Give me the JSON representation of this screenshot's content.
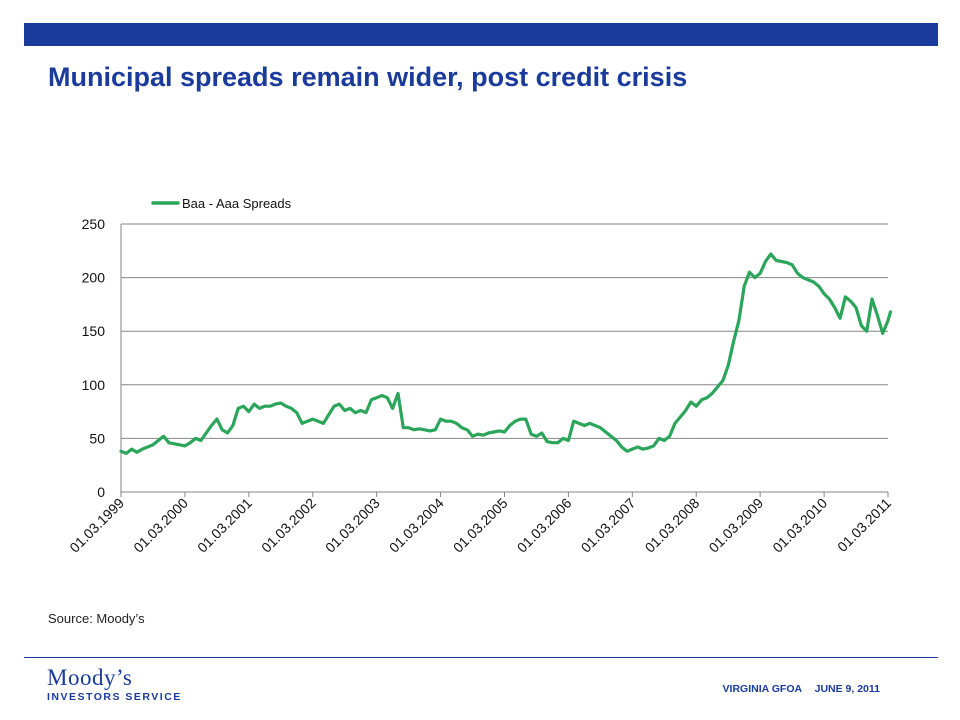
{
  "slide": {
    "title": "Municipal spreads remain wider, post credit crisis",
    "source": "Source: Moody’s",
    "logo_top": "Moody’s",
    "logo_bottom": "INVESTORS SERVICE",
    "footer_org": "VIRGINIA GFOA",
    "footer_date": "JUNE 9, 2011"
  },
  "colors": {
    "brand_blue": "#1a3b9c",
    "series": "#2aa55a",
    "grid": "#868686"
  },
  "chart_data": {
    "type": "line",
    "title": "",
    "xlabel": "",
    "ylabel": "",
    "ylim": [
      0,
      250
    ],
    "yticks": [
      0,
      50,
      100,
      150,
      200,
      250
    ],
    "xlim": [
      "01.03.1999",
      "01.03.2011"
    ],
    "xticks": [
      "01.03.1999",
      "01.03.2000",
      "01.03.2001",
      "01.03.2002",
      "01.03.2003",
      "01.03.2004",
      "01.03.2005",
      "01.03.2006",
      "01.03.2007",
      "01.03.2008",
      "01.03.2009",
      "01.03.2010",
      "01.03.2011"
    ],
    "grid": true,
    "legend": "top-left",
    "series": [
      {
        "name": "Baa - Aaa Spreads",
        "points": [
          [
            "01.03.1999",
            38
          ],
          [
            "01.04.1999",
            36
          ],
          [
            "01.05.1999",
            40
          ],
          [
            "01.06.1999",
            37
          ],
          [
            "01.07.1999",
            40
          ],
          [
            "01.08.1999",
            42
          ],
          [
            "01.09.1999",
            44
          ],
          [
            "01.10.1999",
            48
          ],
          [
            "01.11.1999",
            52
          ],
          [
            "01.12.1999",
            46
          ],
          [
            "01.01.2000",
            45
          ],
          [
            "01.02.2000",
            44
          ],
          [
            "01.03.2000",
            43
          ],
          [
            "01.04.2000",
            46
          ],
          [
            "01.05.2000",
            50
          ],
          [
            "01.06.2000",
            48
          ],
          [
            "01.07.2000",
            55
          ],
          [
            "01.08.2000",
            62
          ],
          [
            "01.09.2000",
            68
          ],
          [
            "01.10.2000",
            58
          ],
          [
            "01.11.2000",
            55
          ],
          [
            "01.12.2000",
            62
          ],
          [
            "01.01.2001",
            78
          ],
          [
            "01.02.2001",
            80
          ],
          [
            "01.03.2001",
            75
          ],
          [
            "01.04.2001",
            82
          ],
          [
            "01.05.2001",
            78
          ],
          [
            "01.06.2001",
            80
          ],
          [
            "01.07.2001",
            80
          ],
          [
            "01.08.2001",
            82
          ],
          [
            "01.09.2001",
            83
          ],
          [
            "01.10.2001",
            80
          ],
          [
            "01.11.2001",
            78
          ],
          [
            "01.12.2001",
            74
          ],
          [
            "01.01.2002",
            64
          ],
          [
            "01.02.2002",
            66
          ],
          [
            "01.03.2002",
            68
          ],
          [
            "01.04.2002",
            66
          ],
          [
            "01.05.2002",
            64
          ],
          [
            "01.06.2002",
            72
          ],
          [
            "01.07.2002",
            80
          ],
          [
            "01.08.2002",
            82
          ],
          [
            "01.09.2002",
            76
          ],
          [
            "01.10.2002",
            78
          ],
          [
            "01.11.2002",
            74
          ],
          [
            "01.12.2002",
            76
          ],
          [
            "01.01.2003",
            74
          ],
          [
            "01.02.2003",
            86
          ],
          [
            "01.03.2003",
            88
          ],
          [
            "01.04.2003",
            90
          ],
          [
            "01.05.2003",
            88
          ],
          [
            "01.06.2003",
            78
          ],
          [
            "01.07.2003",
            92
          ],
          [
            "01.08.2003",
            60
          ],
          [
            "01.09.2003",
            60
          ],
          [
            "01.10.2003",
            58
          ],
          [
            "01.11.2003",
            59
          ],
          [
            "01.12.2003",
            58
          ],
          [
            "01.01.2004",
            57
          ],
          [
            "01.02.2004",
            58
          ],
          [
            "01.03.2004",
            68
          ],
          [
            "01.04.2004",
            66
          ],
          [
            "01.05.2004",
            66
          ],
          [
            "01.06.2004",
            64
          ],
          [
            "01.07.2004",
            60
          ],
          [
            "01.08.2004",
            58
          ],
          [
            "01.09.2004",
            52
          ],
          [
            "01.10.2004",
            54
          ],
          [
            "01.11.2004",
            53
          ],
          [
            "01.12.2004",
            55
          ],
          [
            "01.01.2005",
            56
          ],
          [
            "01.02.2005",
            57
          ],
          [
            "01.03.2005",
            56
          ],
          [
            "01.04.2005",
            62
          ],
          [
            "01.05.2005",
            66
          ],
          [
            "01.06.2005",
            68
          ],
          [
            "01.07.2005",
            68
          ],
          [
            "01.08.2005",
            54
          ],
          [
            "01.09.2005",
            52
          ],
          [
            "01.10.2005",
            55
          ],
          [
            "01.11.2005",
            47
          ],
          [
            "01.12.2005",
            46
          ],
          [
            "01.01.2006",
            46
          ],
          [
            "01.02.2006",
            50
          ],
          [
            "01.03.2006",
            48
          ],
          [
            "01.04.2006",
            66
          ],
          [
            "01.05.2006",
            64
          ],
          [
            "01.06.2006",
            62
          ],
          [
            "01.07.2006",
            64
          ],
          [
            "01.08.2006",
            62
          ],
          [
            "01.09.2006",
            60
          ],
          [
            "01.10.2006",
            56
          ],
          [
            "01.11.2006",
            52
          ],
          [
            "01.12.2006",
            48
          ],
          [
            "01.01.2007",
            42
          ],
          [
            "01.02.2007",
            38
          ],
          [
            "01.03.2007",
            40
          ],
          [
            "01.04.2007",
            42
          ],
          [
            "01.05.2007",
            40
          ],
          [
            "01.06.2007",
            41
          ],
          [
            "01.07.2007",
            43
          ],
          [
            "01.08.2007",
            50
          ],
          [
            "01.09.2007",
            48
          ],
          [
            "01.10.2007",
            52
          ],
          [
            "01.11.2007",
            64
          ],
          [
            "01.12.2007",
            70
          ],
          [
            "01.01.2008",
            76
          ],
          [
            "01.02.2008",
            84
          ],
          [
            "01.03.2008",
            80
          ],
          [
            "01.04.2008",
            86
          ],
          [
            "01.05.2008",
            88
          ],
          [
            "01.06.2008",
            92
          ],
          [
            "01.07.2008",
            98
          ],
          [
            "01.08.2008",
            104
          ],
          [
            "01.09.2008",
            118
          ],
          [
            "01.10.2008",
            140
          ],
          [
            "01.11.2008",
            160
          ],
          [
            "01.12.2008",
            192
          ],
          [
            "01.01.2009",
            205
          ],
          [
            "01.02.2009",
            200
          ],
          [
            "01.03.2009",
            204
          ],
          [
            "01.04.2009",
            215
          ],
          [
            "01.05.2009",
            222
          ],
          [
            "01.06.2009",
            216
          ],
          [
            "01.07.2009",
            215
          ],
          [
            "01.08.2009",
            214
          ],
          [
            "01.09.2009",
            212
          ],
          [
            "01.10.2009",
            204
          ],
          [
            "01.11.2009",
            200
          ],
          [
            "01.12.2009",
            198
          ],
          [
            "01.01.2010",
            196
          ],
          [
            "01.02.2010",
            192
          ],
          [
            "01.03.2010",
            185
          ],
          [
            "01.04.2010",
            180
          ],
          [
            "01.05.2010",
            172
          ],
          [
            "01.06.2010",
            162
          ],
          [
            "01.07.2010",
            182
          ],
          [
            "01.08.2010",
            178
          ],
          [
            "01.09.2010",
            172
          ],
          [
            "01.10.2010",
            155
          ],
          [
            "01.11.2010",
            150
          ],
          [
            "01.12.2010",
            180
          ],
          [
            "01.01.2011",
            165
          ],
          [
            "01.02.2011",
            148
          ],
          [
            "01.03.2011",
            160
          ],
          [
            "15.03.2011",
            168
          ]
        ]
      }
    ]
  }
}
